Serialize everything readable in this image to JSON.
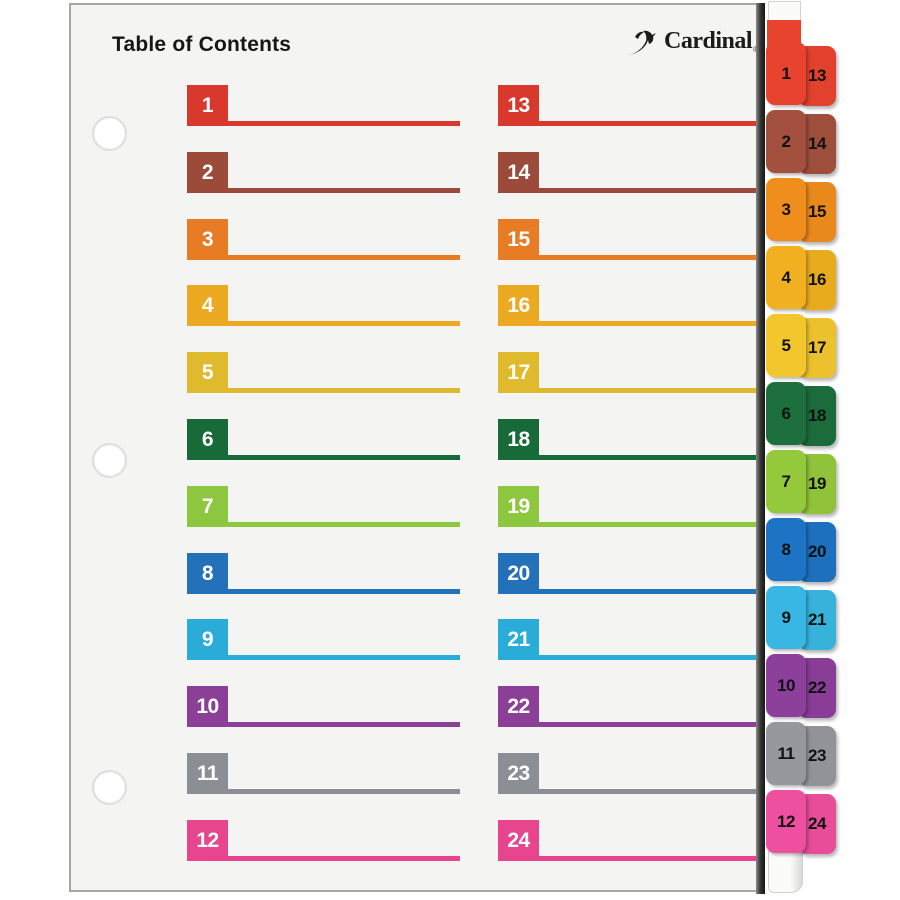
{
  "header": {
    "title": "Table of Contents",
    "brand_name": "Cardinal",
    "brand_mark": "®"
  },
  "colors": {
    "page_background": "#f4f4f2",
    "spine_edge": "#161614",
    "number_text": "#ffffff",
    "tab_number_text": "#121212"
  },
  "dividers": [
    {
      "front_number": "1",
      "back_number": "13",
      "color": "#d8392c",
      "tab_color": "#e8432e"
    },
    {
      "front_number": "2",
      "back_number": "14",
      "color": "#9c4a39",
      "tab_color": "#a3513e"
    },
    {
      "front_number": "3",
      "back_number": "15",
      "color": "#e87c25",
      "tab_color": "#ef8d1d"
    },
    {
      "front_number": "4",
      "back_number": "16",
      "color": "#ecaa23",
      "tab_color": "#f0b01f"
    },
    {
      "front_number": "5",
      "back_number": "17",
      "color": "#e0ba2d",
      "tab_color": "#f2c72e"
    },
    {
      "front_number": "6",
      "back_number": "18",
      "color": "#186a39",
      "tab_color": "#1d6f3d"
    },
    {
      "front_number": "7",
      "back_number": "19",
      "color": "#8dc63f",
      "tab_color": "#94c93c"
    },
    {
      "front_number": "8",
      "back_number": "20",
      "color": "#2371b9",
      "tab_color": "#1d73c4"
    },
    {
      "front_number": "9",
      "back_number": "21",
      "color": "#2aacd8",
      "tab_color": "#38b7e2"
    },
    {
      "front_number": "10",
      "back_number": "22",
      "color": "#8c3f97",
      "tab_color": "#8d3f9c"
    },
    {
      "front_number": "11",
      "back_number": "23",
      "color": "#8b8e94",
      "tab_color": "#96989e"
    },
    {
      "front_number": "12",
      "back_number": "24",
      "color": "#e8458f",
      "tab_color": "#ee4f9e"
    }
  ],
  "layout_values": {
    "hole_count": "3"
  }
}
